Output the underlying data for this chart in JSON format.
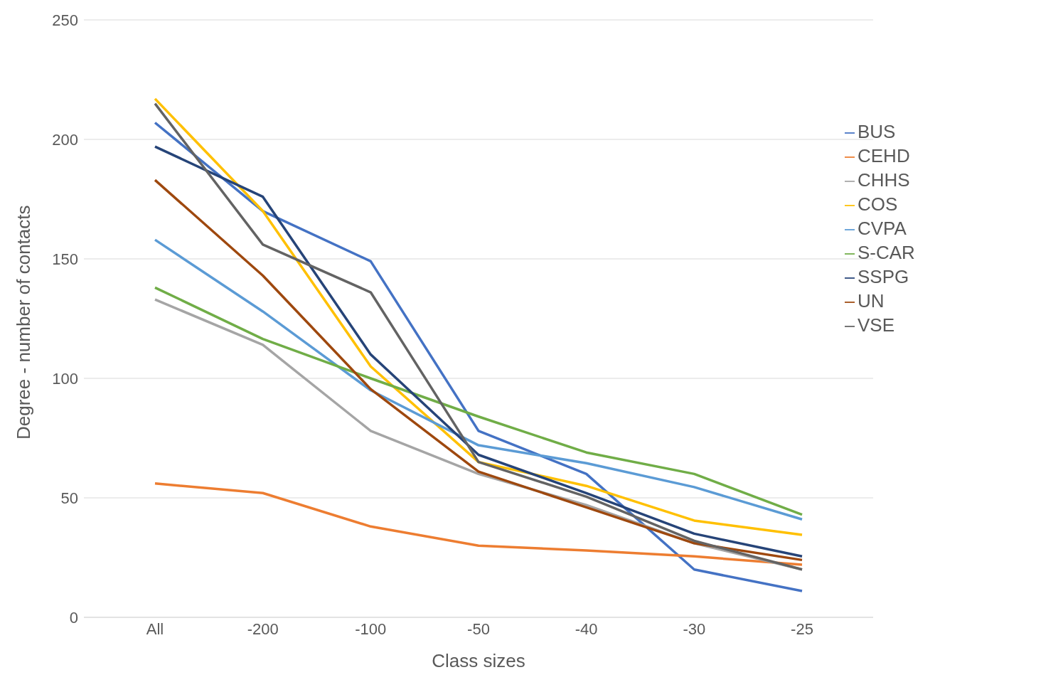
{
  "chart_data": {
    "type": "line",
    "xlabel": "Class sizes",
    "ylabel": "Degree - number of contacts",
    "categories": [
      "All",
      "-200",
      "-100",
      "-50",
      "-40",
      "-30",
      "-25"
    ],
    "series": [
      {
        "name": "BUS",
        "color": "#4472c4",
        "values": [
          207,
          170,
          149,
          78,
          60,
          20,
          11
        ]
      },
      {
        "name": "CEHD",
        "color": "#ed7d31",
        "values": [
          56,
          52,
          38,
          30,
          28,
          25.5,
          22
        ]
      },
      {
        "name": "CHHS",
        "color": "#a5a5a5",
        "values": [
          133,
          114,
          78,
          60,
          47,
          31,
          20
        ]
      },
      {
        "name": "COS",
        "color": "#ffc000",
        "values": [
          217,
          170,
          105,
          65,
          55,
          40.5,
          34.5
        ]
      },
      {
        "name": "CVPA",
        "color": "#5b9bd5",
        "values": [
          158,
          128,
          95,
          72,
          64.5,
          54.5,
          41
        ]
      },
      {
        "name": "S-CAR",
        "color": "#70ad47",
        "values": [
          138,
          116.5,
          100,
          84,
          69,
          60,
          43
        ]
      },
      {
        "name": "SSPG",
        "color": "#264478",
        "values": [
          197,
          176,
          110,
          68,
          52,
          35,
          25.5
        ]
      },
      {
        "name": "UN",
        "color": "#9e480e",
        "values": [
          183,
          143,
          95.5,
          61,
          46,
          31,
          24
        ]
      },
      {
        "name": "VSE",
        "color": "#636363",
        "values": [
          215,
          156,
          136,
          65,
          50.5,
          32,
          20
        ]
      }
    ],
    "ylim": [
      0,
      250
    ],
    "yticks": [
      0,
      50,
      100,
      150,
      200,
      250
    ],
    "grid": "y",
    "legend": "top right",
    "marker": "none",
    "line_style": "solid"
  }
}
